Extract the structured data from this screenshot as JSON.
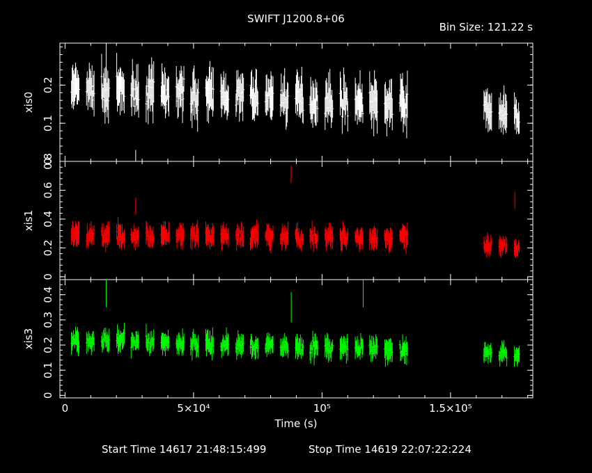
{
  "title": "SWIFT J1200.8+06",
  "bin_size": "Bin Size: 121.22 s",
  "start_time": "Start Time 14617 21:48:15:499",
  "stop_time": "Stop Time 14619 22:07:22:224",
  "chart_data": {
    "type": "scatter",
    "title": "SWIFT J1200.8+06",
    "xlabel": "Time (s)",
    "xlim": [
      -2000,
      182000
    ],
    "x_ticks": [
      {
        "value": 0,
        "label": "0"
      },
      {
        "value": 50000,
        "label": "5×10⁴"
      },
      {
        "value": 100000,
        "label": "10⁵"
      },
      {
        "value": 150000,
        "label": "1.5×10⁵"
      }
    ],
    "grid": false,
    "panels": [
      {
        "name": "xis0",
        "ylabel": "xis0",
        "color": "#ffffff",
        "ylim": [
          0.0,
          0.31
        ],
        "y_ticks": [
          {
            "value": 0.0,
            "label": "0"
          },
          {
            "value": 0.1,
            "label": "0.1"
          },
          {
            "value": 0.2,
            "label": "0.2"
          }
        ],
        "segments": [
          {
            "t0": 2500,
            "t1": 134000,
            "mean": 0.19,
            "amp": 0.045,
            "trend": -0.04
          },
          {
            "t0": 163000,
            "t1": 177000,
            "mean": 0.14,
            "amp": 0.04,
            "trend": -0.03
          }
        ],
        "outliers": [
          {
            "x": 27500,
            "y": 0.0
          },
          {
            "x": 16000,
            "y": 0.3
          }
        ]
      },
      {
        "name": "xis1",
        "ylabel": "xis1",
        "color": "#ff0000",
        "ylim": [
          -0.02,
          0.8
        ],
        "y_ticks": [
          {
            "value": 0.0,
            "label": "0"
          },
          {
            "value": 0.2,
            "label": "0.2"
          },
          {
            "value": 0.4,
            "label": "0.4"
          },
          {
            "value": 0.6,
            "label": "0.6"
          },
          {
            "value": 0.8,
            "label": "0.8"
          }
        ],
        "segments": [
          {
            "t0": 2500,
            "t1": 134000,
            "mean": 0.29,
            "amp": 0.06,
            "trend": -0.02
          },
          {
            "t0": 163000,
            "t1": 177000,
            "mean": 0.21,
            "amp": 0.05,
            "trend": -0.01
          }
        ],
        "outliers": [
          {
            "x": 88000,
            "y": 0.74
          },
          {
            "x": 175000,
            "y": 0.56
          },
          {
            "x": 27500,
            "y": 0.52
          }
        ]
      },
      {
        "name": "xis3",
        "ylabel": "xis3",
        "color": "#00ff00",
        "ylim": [
          -0.01,
          0.46
        ],
        "y_ticks": [
          {
            "value": 0.0,
            "label": "0"
          },
          {
            "value": 0.1,
            "label": "0.1"
          },
          {
            "value": 0.2,
            "label": "0.2"
          },
          {
            "value": 0.3,
            "label": "0.3"
          },
          {
            "value": 0.4,
            "label": "0.4"
          }
        ],
        "segments": [
          {
            "t0": 2500,
            "t1": 134000,
            "mean": 0.22,
            "amp": 0.035,
            "trend": -0.04
          },
          {
            "t0": 163000,
            "t1": 177000,
            "mean": 0.17,
            "amp": 0.03,
            "trend": -0.01
          }
        ],
        "outliers": [
          {
            "x": 16000,
            "y": 0.44
          },
          {
            "x": 88000,
            "y": 0.38
          },
          {
            "x": 116000,
            "y": 0.44
          }
        ]
      }
    ]
  }
}
